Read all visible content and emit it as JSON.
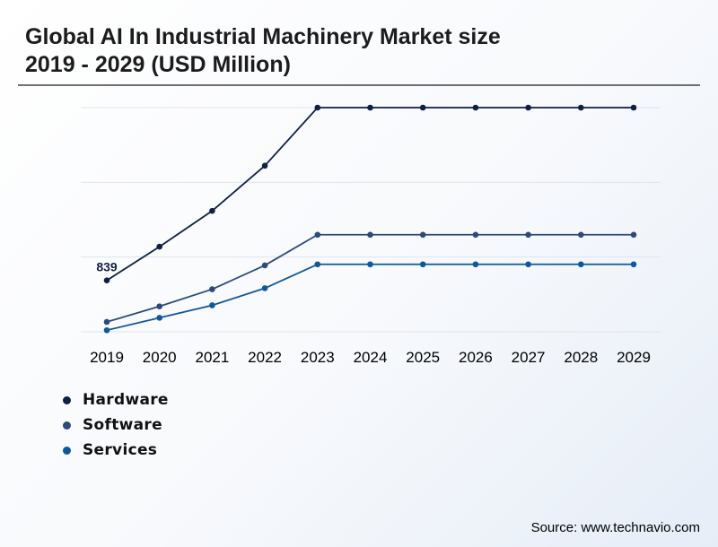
{
  "title_lines": [
    "Global AI In Industrial Machinery Market size",
    "2019 - 2029 (USD Million)"
  ],
  "source": "Source: www.technavio.com",
  "chart_data": {
    "type": "line",
    "title": "Global AI In Industrial Machinery Market size 2019 - 2029 (USD Million)",
    "xlabel": "",
    "ylabel": "",
    "categories": [
      "2019",
      "2020",
      "2021",
      "2022",
      "2023",
      "2024",
      "2025",
      "2026",
      "2027",
      "2028",
      "2029"
    ],
    "series": [
      {
        "name": "Hardware",
        "color": "#0f1f45",
        "values": [
          839,
          904,
          973,
          1060,
          1172,
          1172,
          1172,
          1172,
          1172,
          1172,
          1172
        ],
        "data_labels": [
          "839",
          null,
          null,
          null,
          null,
          null,
          null,
          null,
          null,
          null,
          null
        ]
      },
      {
        "name": "Software",
        "color": "#2d4a7a",
        "values": [
          759,
          789,
          822,
          868,
          927,
          927,
          927,
          927,
          927,
          927,
          927
        ]
      },
      {
        "name": "Services",
        "color": "#11579c",
        "values": [
          743,
          767,
          791,
          824,
          870,
          870,
          870,
          870,
          870,
          870,
          870
        ]
      }
    ],
    "ylim": [
      740,
      1172
    ],
    "y_gridlines": [
      740,
      884,
      1028,
      1172
    ],
    "grid": true,
    "legend_position": "bottom-left"
  }
}
